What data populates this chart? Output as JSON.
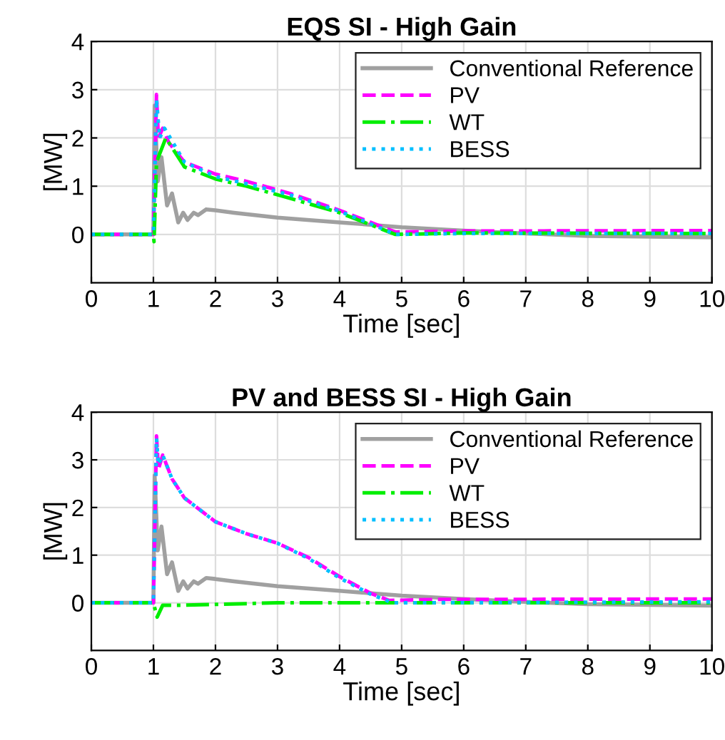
{
  "chart_data": [
    {
      "type": "line",
      "title": "EQS SI - High Gain",
      "xlabel": "Time [sec]",
      "ylabel": "[MW]",
      "xlim": [
        0,
        10
      ],
      "xticks": [
        0,
        1,
        2,
        3,
        4,
        5,
        6,
        7,
        8,
        9,
        10
      ],
      "ylim": [
        -1,
        4
      ],
      "yticks": [
        0,
        1,
        2,
        3,
        4
      ],
      "grid": true,
      "legend": "top right",
      "series": [
        {
          "name": "Conventional Reference",
          "color": "#a0a0a0",
          "line_style": "solid",
          "x": [
            0,
            1.0,
            1.02,
            1.07,
            1.13,
            1.22,
            1.3,
            1.4,
            1.48,
            1.55,
            1.65,
            1.72,
            1.85,
            2,
            2.3,
            3,
            4,
            5,
            6,
            7,
            8,
            10
          ],
          "values": [
            0,
            0,
            2.67,
            1.1,
            1.6,
            0.6,
            0.85,
            0.25,
            0.45,
            0.3,
            0.45,
            0.4,
            0.52,
            0.5,
            0.45,
            0.35,
            0.25,
            0.15,
            0.08,
            0.02,
            -0.03,
            -0.06
          ]
        },
        {
          "name": "PV",
          "color": "#ff00ff",
          "line_style": "dashed",
          "x": [
            0,
            1.0,
            1.05,
            1.08,
            1.15,
            1.25,
            1.5,
            2,
            2.5,
            3.2,
            4,
            4.5,
            4.9,
            6,
            10
          ],
          "values": [
            0,
            0,
            2.9,
            2.0,
            2.2,
            1.9,
            1.5,
            1.25,
            1.1,
            0.85,
            0.5,
            0.25,
            0.05,
            0.07,
            0.08
          ]
        },
        {
          "name": "WT",
          "color": "#00ee00",
          "line_style": "dashdot",
          "x": [
            0,
            1.0,
            1.01,
            1.05,
            1.2,
            1.5,
            2,
            2.5,
            3.2,
            4,
            4.5,
            4.9,
            6,
            10
          ],
          "values": [
            0,
            0,
            -0.15,
            1.5,
            2.0,
            1.4,
            1.15,
            1.0,
            0.75,
            0.45,
            0.2,
            0.0,
            0.03,
            0.02
          ]
        },
        {
          "name": "BESS",
          "color": "#00bfff",
          "line_style": "dotted",
          "x": [
            0,
            1.0,
            1.05,
            1.1,
            1.18,
            1.5,
            2,
            2.5,
            3.2,
            4,
            4.5,
            4.9,
            6,
            10
          ],
          "values": [
            0,
            0,
            2.8,
            2.0,
            2.2,
            1.5,
            1.2,
            1.05,
            0.82,
            0.48,
            0.22,
            0.0,
            0.02,
            0.02
          ]
        }
      ]
    },
    {
      "type": "line",
      "title": "PV and BESS SI - High Gain",
      "xlabel": "Time [sec]",
      "ylabel": "[MW]",
      "xlim": [
        0,
        10
      ],
      "xticks": [
        0,
        1,
        2,
        3,
        4,
        5,
        6,
        7,
        8,
        9,
        10
      ],
      "ylim": [
        -1,
        4
      ],
      "yticks": [
        0,
        1,
        2,
        3,
        4
      ],
      "grid": true,
      "legend": "top right",
      "series": [
        {
          "name": "Conventional Reference",
          "color": "#a0a0a0",
          "line_style": "solid",
          "x": [
            0,
            1.0,
            1.02,
            1.07,
            1.13,
            1.22,
            1.3,
            1.4,
            1.48,
            1.55,
            1.65,
            1.72,
            1.85,
            2,
            2.3,
            3,
            4,
            5,
            6,
            7,
            8,
            10
          ],
          "values": [
            0,
            0,
            2.67,
            1.1,
            1.6,
            0.6,
            0.85,
            0.25,
            0.45,
            0.3,
            0.45,
            0.4,
            0.52,
            0.5,
            0.45,
            0.35,
            0.25,
            0.15,
            0.08,
            0.02,
            -0.03,
            -0.06
          ]
        },
        {
          "name": "PV",
          "color": "#ff00ff",
          "line_style": "dashed",
          "x": [
            0,
            1.0,
            1.05,
            1.08,
            1.15,
            1.3,
            1.5,
            1.8,
            2,
            2.5,
            3,
            3.5,
            4,
            4.5,
            4.8,
            5.5,
            10
          ],
          "values": [
            0,
            0,
            3.5,
            2.8,
            3.1,
            2.6,
            2.2,
            1.9,
            1.7,
            1.45,
            1.25,
            0.95,
            0.55,
            0.2,
            0.05,
            0.07,
            0.08
          ]
        },
        {
          "name": "WT",
          "color": "#00ee00",
          "line_style": "dashdot",
          "x": [
            0,
            1.0,
            1.06,
            1.15,
            1.5,
            3,
            10
          ],
          "values": [
            0,
            0,
            -0.3,
            -0.05,
            -0.05,
            0,
            0
          ]
        },
        {
          "name": "BESS",
          "color": "#00bfff",
          "line_style": "dotted",
          "x": [
            0,
            1.0,
            1.05,
            1.08,
            1.15,
            1.3,
            1.5,
            1.8,
            2,
            2.5,
            3,
            3.5,
            4,
            4.5,
            4.85,
            10
          ],
          "values": [
            0,
            0,
            3.45,
            2.9,
            3.1,
            2.6,
            2.2,
            1.9,
            1.7,
            1.45,
            1.25,
            0.93,
            0.52,
            0.18,
            0.0,
            0.02
          ]
        }
      ]
    }
  ]
}
